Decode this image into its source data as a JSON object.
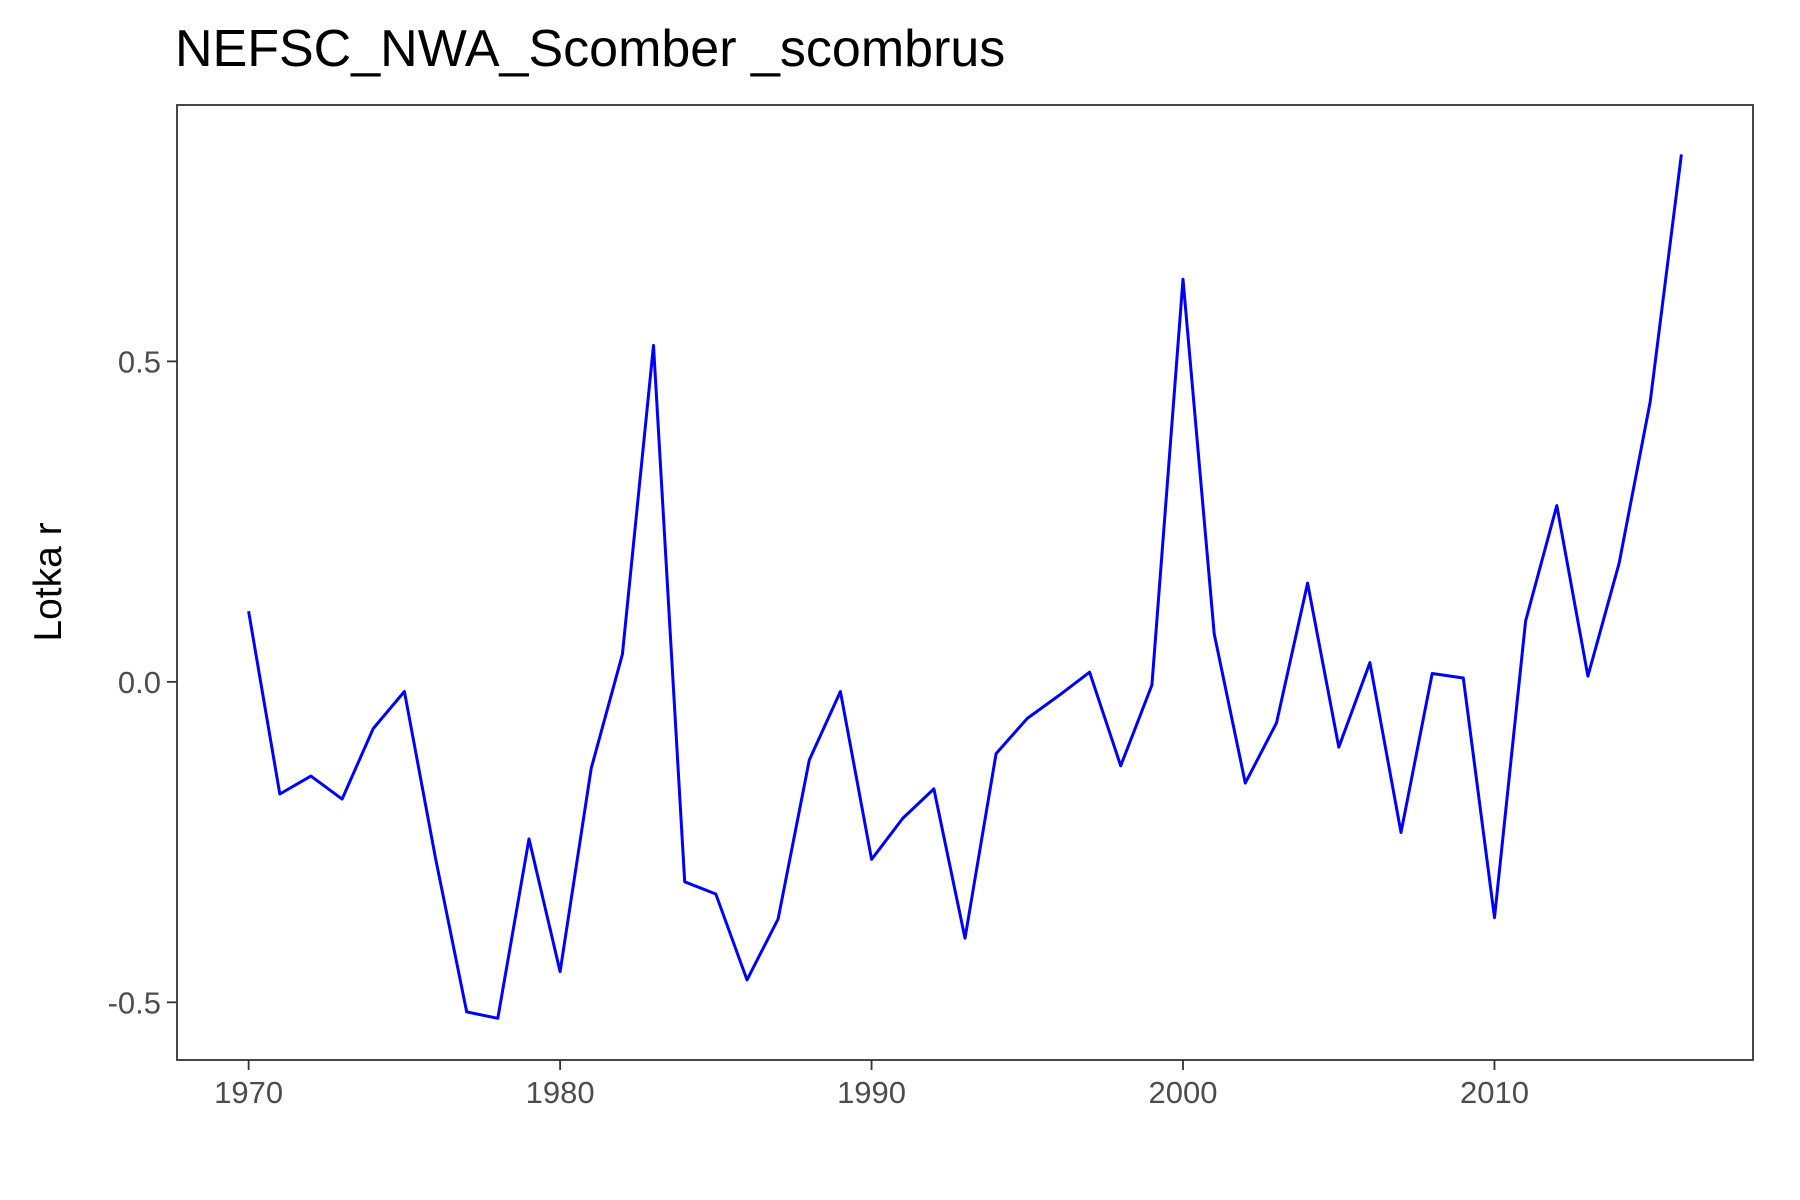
{
  "chart_data": {
    "type": "line",
    "title": "NEFSC_NWA_Scomber _scombrus",
    "xlabel": "",
    "ylabel": "Lotka r",
    "xlim": [
      1967.7,
      2018.3
    ],
    "ylim": [
      -0.59,
      0.9
    ],
    "x_ticks": [
      1970,
      1980,
      1990,
      2000,
      2010
    ],
    "x_tick_labels": [
      "1970",
      "1980",
      "1990",
      "2000",
      "2010"
    ],
    "y_ticks": [
      -0.5,
      0.0,
      0.5
    ],
    "y_tick_labels": [
      "-0.5",
      "0.0",
      "0.5"
    ],
    "grid": false,
    "line_color": "#0000ff",
    "series": [
      {
        "x": [
          1970,
          1971,
          1972,
          1973,
          1974,
          1975,
          1976,
          1977,
          1978,
          1979,
          1980,
          1981,
          1982,
          1983,
          1984,
          1985,
          1986,
          1987,
          1988,
          1989,
          1990,
          1991,
          1992,
          1993,
          1994,
          1995,
          1996,
          1997,
          1998,
          1999,
          2000,
          2001,
          2002,
          2003,
          2004,
          2005,
          2006,
          2007,
          2008,
          2009,
          2010,
          2011,
          2012,
          2013,
          2014,
          2015,
          2016
        ],
        "values": [
          0.11,
          -0.175,
          -0.147,
          -0.183,
          -0.073,
          -0.015,
          -0.275,
          -0.515,
          -0.525,
          -0.245,
          -0.452,
          -0.135,
          0.043,
          0.525,
          -0.312,
          -0.331,
          -0.465,
          -0.37,
          -0.122,
          -0.015,
          -0.277,
          -0.213,
          -0.167,
          -0.4,
          -0.112,
          -0.057,
          -0.022,
          0.015,
          -0.131,
          -0.005,
          0.628,
          0.075,
          -0.158,
          -0.064,
          0.154,
          -0.102,
          0.03,
          -0.235,
          0.013,
          0.006,
          -0.368,
          0.095,
          0.275,
          0.009,
          0.185,
          0.437,
          0.823
        ]
      }
    ]
  }
}
